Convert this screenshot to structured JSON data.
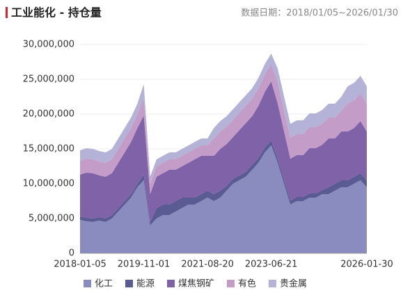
{
  "chart_data": {
    "type": "stacked_area",
    "title": "工业能化 - 持仓量",
    "subtitle": "数据日期：2018/01/05~2026/01/30",
    "categories": [
      "2018-01-05",
      null,
      null,
      null,
      null,
      null,
      null,
      null,
      null,
      null,
      "2019-11-01",
      null,
      null,
      null,
      null,
      null,
      null,
      null,
      null,
      null,
      "2021-08-20",
      null,
      null,
      null,
      null,
      null,
      null,
      null,
      null,
      null,
      "2023-06-21",
      null,
      null,
      null,
      null,
      null,
      null,
      null,
      null,
      null,
      null,
      null,
      null,
      null,
      null,
      "2026-01-30"
    ],
    "series": [
      {
        "name": "化工",
        "color": "#8a8cc0",
        "values": [
          4800000,
          4600000,
          4500000,
          4700000,
          4500000,
          5000000,
          6000000,
          7000000,
          8000000,
          9500000,
          10500000,
          4000000,
          5000000,
          5500000,
          5500000,
          6000000,
          6500000,
          7000000,
          7000000,
          7500000,
          8000000,
          7500000,
          8000000,
          9000000,
          10000000,
          10500000,
          11000000,
          12000000,
          13000000,
          14500000,
          15500000,
          13000000,
          10000000,
          7000000,
          7500000,
          7500000,
          8000000,
          8000000,
          8500000,
          8500000,
          9000000,
          9500000,
          9500000,
          10000000,
          10500000,
          9500000
        ]
      },
      {
        "name": "能源",
        "color": "#5b5b93",
        "values": [
          500000,
          500000,
          500000,
          500000,
          500000,
          500000,
          500000,
          500000,
          500000,
          500000,
          800000,
          500000,
          1500000,
          1500000,
          1500000,
          1500000,
          1500000,
          1000000,
          1000000,
          1000000,
          1000000,
          1000000,
          1000000,
          700000,
          700000,
          700000,
          700000,
          700000,
          700000,
          700000,
          700000,
          600000,
          600000,
          600000,
          600000,
          600000,
          600000,
          600000,
          600000,
          1000000,
          1000000,
          1000000,
          1000000,
          1000000,
          1000000,
          1000000
        ]
      },
      {
        "name": "煤焦钢矿",
        "color": "#8062a8",
        "values": [
          6000000,
          6500000,
          6500000,
          6000000,
          6000000,
          6000000,
          6500000,
          7000000,
          7500000,
          8000000,
          8500000,
          4000000,
          4500000,
          4500000,
          5000000,
          4500000,
          4500000,
          5000000,
          5500000,
          5500000,
          5000000,
          5500000,
          6000000,
          6000000,
          6000000,
          6500000,
          7000000,
          7000000,
          7500000,
          8000000,
          8500000,
          8000000,
          7000000,
          6000000,
          6000000,
          6000000,
          6500000,
          6500000,
          6500000,
          7000000,
          6500000,
          7000000,
          7000000,
          7000000,
          7500000,
          7000000
        ]
      },
      {
        "name": "有色",
        "color": "#c49cc8",
        "values": [
          2000000,
          2000000,
          2000000,
          2000000,
          2000000,
          2000000,
          2000000,
          2000000,
          2000000,
          2000000,
          2500000,
          1500000,
          1500000,
          1500000,
          1500000,
          1500000,
          1500000,
          1500000,
          1500000,
          1500000,
          1500000,
          2500000,
          2500000,
          2500000,
          2500000,
          2500000,
          2500000,
          2500000,
          2500000,
          2500000,
          2500000,
          3000000,
          3000000,
          3000000,
          3000000,
          3000000,
          3000000,
          3000000,
          3000000,
          3000000,
          3000000,
          3000000,
          4000000,
          4000000,
          4000000,
          4000000
        ]
      },
      {
        "name": "贵金属",
        "color": "#b4b2d6",
        "values": [
          1500000,
          1500000,
          1500000,
          1500000,
          1500000,
          1500000,
          1500000,
          1500000,
          1500000,
          1500000,
          2000000,
          1000000,
          1000000,
          1000000,
          1000000,
          1000000,
          1000000,
          1000000,
          1000000,
          1000000,
          1000000,
          1500000,
          1500000,
          1500000,
          1500000,
          1500000,
          1500000,
          1500000,
          1500000,
          1500000,
          1500000,
          2000000,
          2000000,
          2000000,
          2000000,
          2000000,
          2000000,
          2000000,
          2000000,
          2000000,
          2000000,
          2000000,
          2500000,
          2500000,
          2500000,
          2500000
        ]
      }
    ],
    "ylim": [
      0,
      30000000
    ],
    "yticks": [
      0,
      {
        "value": 5000000,
        "label": "5,000,000"
      },
      {
        "value": 10000000,
        "label": "10,000,000"
      },
      {
        "value": 15000000,
        "label": "15,000,000"
      },
      {
        "value": 20000000,
        "label": "20,000,000"
      },
      {
        "value": 25000000,
        "label": "25,000,000"
      },
      {
        "value": 30000000,
        "label": "30,000,000"
      }
    ],
    "grid": true,
    "legend": "bottom"
  }
}
